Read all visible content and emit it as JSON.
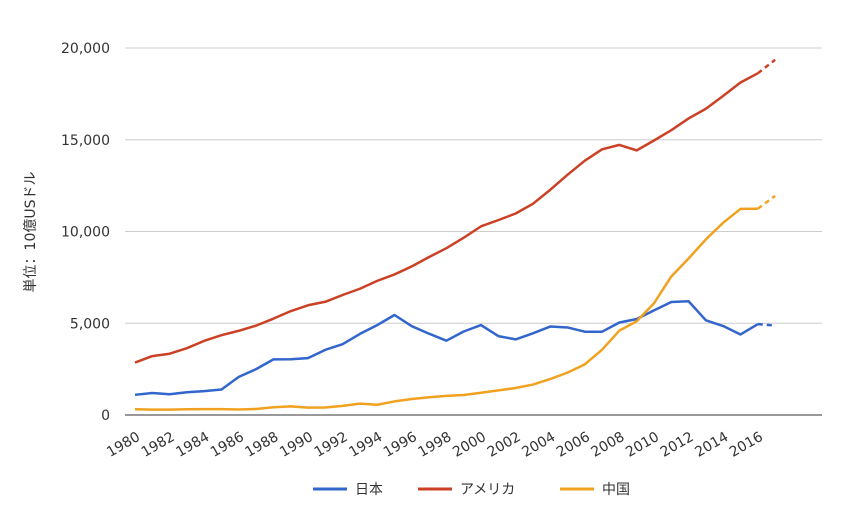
{
  "chart_data": {
    "type": "line",
    "title": "",
    "xlabel": "",
    "ylabel": "単位：10億USドル",
    "ylim": [
      0,
      20000
    ],
    "yticks": [
      "0",
      "5,000",
      "10,000",
      "15,000",
      "20,000"
    ],
    "xticks": [
      "1980",
      "1982",
      "1984",
      "1986",
      "1988",
      "1990",
      "1992",
      "1994",
      "1996",
      "1998",
      "2000",
      "2002",
      "2004",
      "2006",
      "2008",
      "2010",
      "2012",
      "2014",
      "2016"
    ],
    "grid": true,
    "legend_position": "bottom",
    "x": [
      1980,
      1981,
      1982,
      1983,
      1984,
      1985,
      1986,
      1987,
      1988,
      1989,
      1990,
      1991,
      1992,
      1993,
      1994,
      1995,
      1996,
      1997,
      1998,
      1999,
      2000,
      2001,
      2002,
      2003,
      2004,
      2005,
      2006,
      2007,
      2008,
      2009,
      2010,
      2011,
      2012,
      2013,
      2014,
      2015,
      2016,
      2017
    ],
    "projected_from": 2016,
    "series": [
      {
        "name": "日本",
        "color": "#3366cc",
        "values": [
          1100,
          1200,
          1130,
          1240,
          1300,
          1390,
          2080,
          2500,
          3030,
          3040,
          3100,
          3550,
          3860,
          4420,
          4900,
          5450,
          4840,
          4430,
          4050,
          4550,
          4900,
          4300,
          4120,
          4450,
          4820,
          4770,
          4540,
          4540,
          5040,
          5230,
          5700,
          6160,
          6200,
          5160,
          4850,
          4390,
          4950,
          4880
        ]
      },
      {
        "name": "アメリカ",
        "color": "#cc4125",
        "values": [
          2860,
          3210,
          3340,
          3640,
          4040,
          4350,
          4590,
          4870,
          5250,
          5660,
          5980,
          6170,
          6540,
          6880,
          7310,
          7660,
          8100,
          8610,
          9090,
          9660,
          10280,
          10620,
          10980,
          11510,
          12270,
          13090,
          13860,
          14480,
          14720,
          14420,
          14960,
          15520,
          16160,
          16690,
          17390,
          18120,
          18620,
          19360
        ]
      },
      {
        "name": "中国",
        "color": "#f1a120",
        "values": [
          310,
          290,
          290,
          310,
          320,
          320,
          300,
          330,
          420,
          470,
          400,
          410,
          500,
          620,
          560,
          740,
          870,
          970,
          1040,
          1090,
          1210,
          1340,
          1470,
          1660,
          1960,
          2310,
          2760,
          3560,
          4600,
          5110,
          6090,
          7550,
          8530,
          9570,
          10480,
          11230,
          11240,
          11940
        ]
      }
    ]
  }
}
